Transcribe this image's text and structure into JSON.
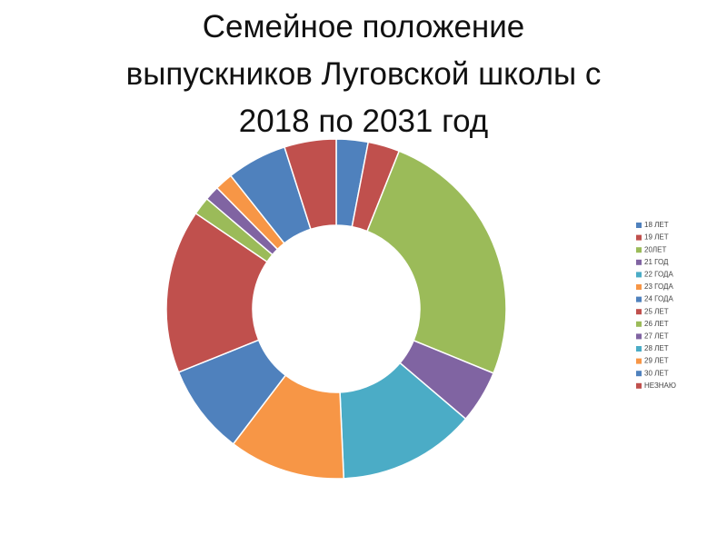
{
  "chart_data": {
    "type": "donut",
    "title": "Семейное положение\nвыпускников Луговской школы с\n2018 по 2031 год",
    "categories": [
      "18 ЛЕТ",
      "19 ЛЕТ",
      "20ЛЕТ",
      "21 ГОД",
      "22 ГОДА",
      "23 ГОДА",
      "24 ГОДА",
      "25 ЛЕТ",
      "26 ЛЕТ",
      "27 ЛЕТ",
      "28 ЛЕТ",
      "29 ЛЕТ",
      "30 ЛЕТ",
      "НЕЗНАЮ"
    ],
    "values": [
      3,
      3,
      25,
      5,
      13,
      11,
      8.5,
      15.5,
      1.7,
      1.4,
      0,
      1.7,
      5.7,
      4.9
    ],
    "colors": [
      "#4f81bd",
      "#c0504d",
      "#9bbb59",
      "#8064a2",
      "#4bacc6",
      "#f79646",
      "#4f81bd",
      "#c0504d",
      "#9bbb59",
      "#8064a2",
      "#4bacc6",
      "#f79646",
      "#4f81bd",
      "#c0504d"
    ],
    "legend": "right"
  }
}
